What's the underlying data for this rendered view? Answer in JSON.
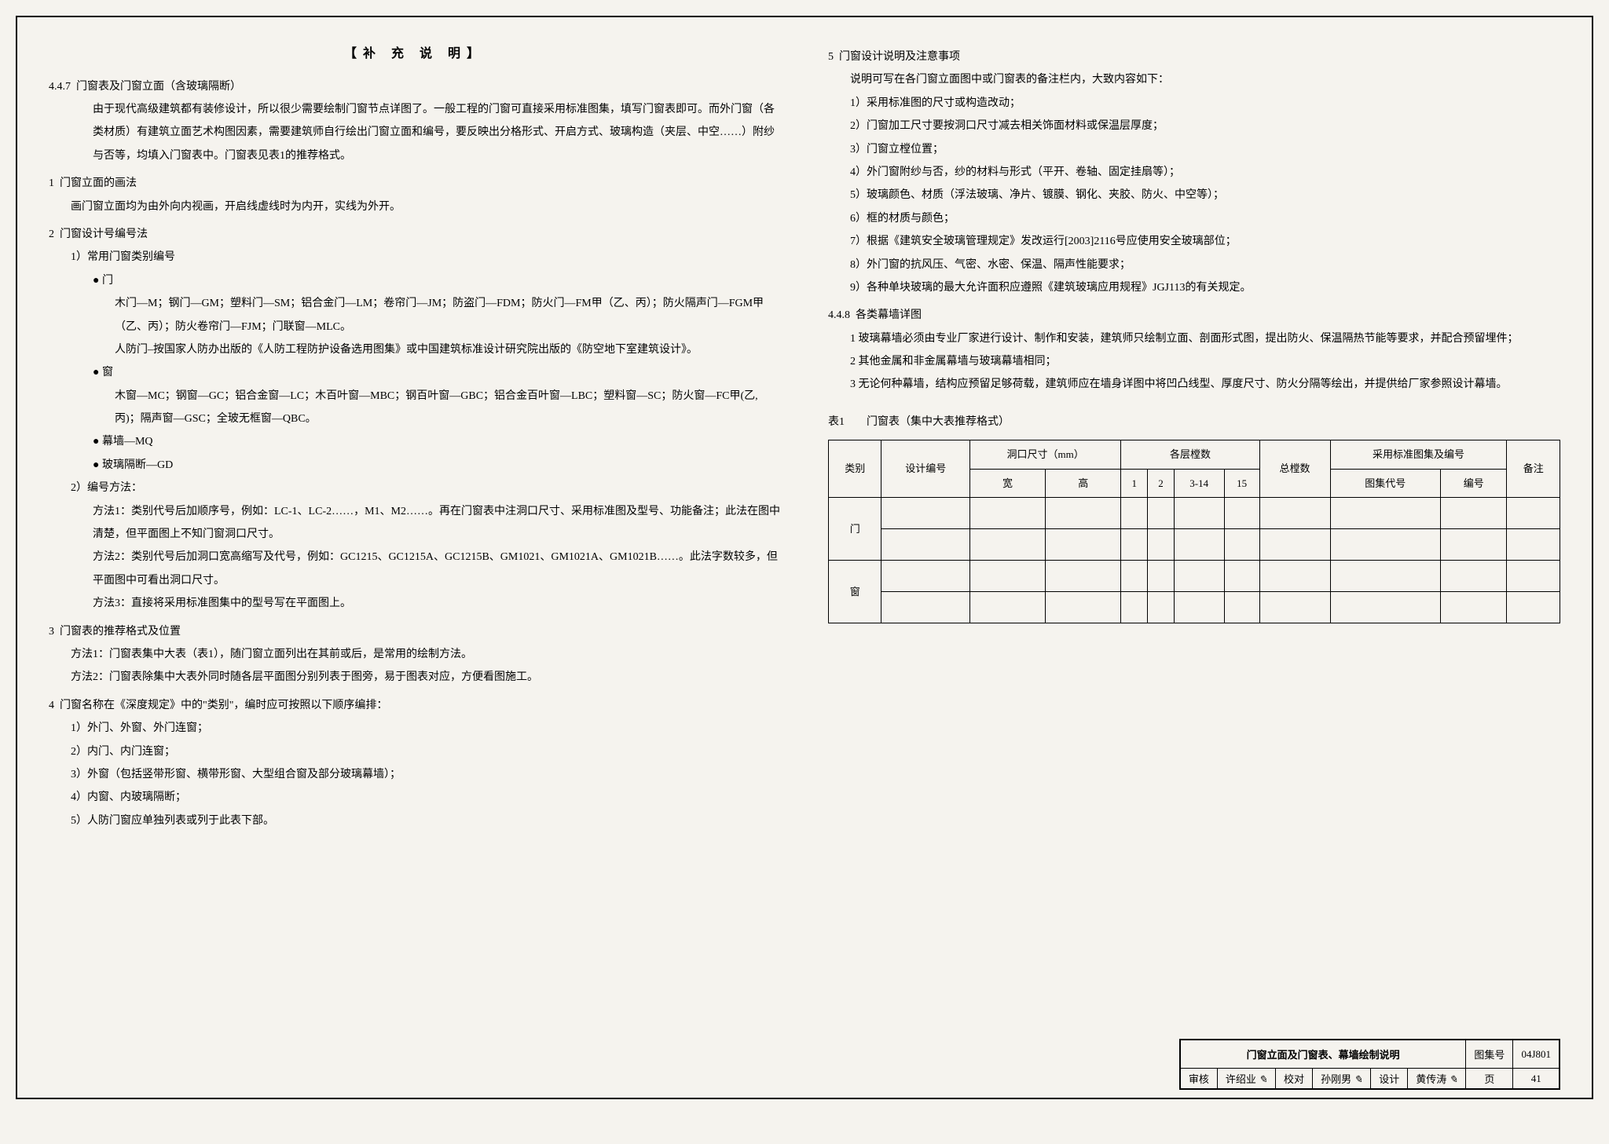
{
  "header": {
    "title": "【补 充 说 明】"
  },
  "left": {
    "s447_num": "4.4.7",
    "s447_title": "门窗表及门窗立面（含玻璃隔断）",
    "s447_p1": "由于现代高级建筑都有装修设计，所以很少需要绘制门窗节点详图了。一般工程的门窗可直接采用标准图集，填写门窗表即可。而外门窗（各类材质）有建筑立面艺术构图因素，需要建筑师自行绘出门窗立面和编号，要反映出分格形式、开启方式、玻璃构造（夹层、中空……）附纱与否等，均填入门窗表中。门窗表见表1的推荐格式。",
    "s1_num": "1",
    "s1_title": "门窗立面的画法",
    "s1_p1": "画门窗立面均为由外向内视画，开启线虚线时为内开，实线为外开。",
    "s2_num": "2",
    "s2_title": "门窗设计号编号法",
    "s2_1": "1）常用门窗类别编号",
    "door_label": "● 门",
    "door_p1": "木门—M；钢门—GM；塑料门—SM；铝合金门—LM；卷帘门—JM；防盗门—FDM；防火门—FM甲（乙、丙）；防火隔声门—FGM甲（乙、丙）；防火卷帘门—FJM；门联窗—MLC。",
    "door_p2": "人防门–按国家人防办出版的《人防工程防护设备选用图集》或中国建筑标准设计研究院出版的《防空地下室建筑设计》。",
    "win_label": "● 窗",
    "win_p1": "木窗—MC；钢窗—GC；铝合金窗—LC；木百叶窗—MBC；钢百叶窗—GBC；铝合金百叶窗—LBC；塑料窗—SC；防火窗—FC甲(乙,丙)；隔声窗—GSC；全玻无框窗—QBC。",
    "mq_label": "● 幕墙—MQ",
    "gd_label": "● 玻璃隔断—GD",
    "s2_2": "2）编号方法：",
    "m1": "方法1：类别代号后加顺序号，例如：LC-1、LC-2……，M1、M2……。再在门窗表中注洞口尺寸、采用标准图及型号、功能备注；此法在图中清楚，但平面图上不知门窗洞口尺寸。",
    "m2": "方法2：类别代号后加洞口宽高缩写及代号，例如：GC1215、GC1215A、GC1215B、GM1021、GM1021A、GM1021B……。此法字数较多，但平面图中可看出洞口尺寸。",
    "m3": "方法3：直接将采用标准图集中的型号写在平面图上。",
    "s3_num": "3",
    "s3_title": "门窗表的推荐格式及位置",
    "s3_m1": "方法1：门窗表集中大表（表1），随门窗立面列出在其前或后，是常用的绘制方法。",
    "s3_m2": "方法2：门窗表除集中大表外同时随各层平面图分别列表于图旁，易于图表对应，方便看图施工。",
    "s4_num": "4",
    "s4_title": "门窗名称在《深度规定》中的\"类别\"，编时应可按照以下顺序编排：",
    "s4_1": "1）外门、外窗、外门连窗；",
    "s4_2": "2）内门、内门连窗；",
    "s4_3": "3）外窗（包括竖带形窗、横带形窗、大型组合窗及部分玻璃幕墙）；",
    "s4_4": "4）内窗、内玻璃隔断；",
    "s4_5": "5）人防门窗应单独列表或列于此表下部。"
  },
  "right": {
    "s5_num": "5",
    "s5_title": "门窗设计说明及注意事项",
    "s5_p0": "说明可写在各门窗立面图中或门窗表的备注栏内，大致内容如下：",
    "s5_1": "1）采用标准图的尺寸或构造改动；",
    "s5_2": "2）门窗加工尺寸要按洞口尺寸减去相关饰面材料或保温层厚度；",
    "s5_3": "3）门窗立樘位置；",
    "s5_4": "4）外门窗附纱与否，纱的材料与形式（平开、卷轴、固定挂扇等）；",
    "s5_5": "5）玻璃颜色、材质（浮法玻璃、净片、镀膜、钢化、夹胶、防火、中空等）；",
    "s5_6": "6）框的材质与颜色；",
    "s5_7": "7）根据《建筑安全玻璃管理规定》发改运行[2003]2116号应使用安全玻璃部位；",
    "s5_8": "8）外门窗的抗风压、气密、水密、保温、隔声性能要求；",
    "s5_9": "9）各种单块玻璃的最大允许面积应遵照《建筑玻璃应用规程》JGJ113的有关规定。",
    "s448_num": "4.4.8",
    "s448_title": "各类幕墙详图",
    "s448_1": "1 玻璃幕墙必须由专业厂家进行设计、制作和安装，建筑师只绘制立面、剖面形式图，提出防火、保温隔热节能等要求，并配合预留埋件；",
    "s448_2": "2 其他金属和非金属幕墙与玻璃幕墙相同；",
    "s448_3": "3 无论何种幕墙，结构应预留足够荷载，建筑师应在墙身详图中将凹凸线型、厚度尺寸、防火分隔等绘出，并提供给厂家参照设计幕墙。"
  },
  "table": {
    "caption_label": "表1",
    "caption": "门窗表（集中大表推荐格式）",
    "h_type": "类别",
    "h_design": "设计编号",
    "h_hole": "洞口尺寸（mm）",
    "h_w": "宽",
    "h_h": "高",
    "h_floors": "各层樘数",
    "h_f1": "1",
    "h_f2": "2",
    "h_f3": "3-14",
    "h_f4": "15",
    "h_total": "总樘数",
    "h_std": "采用标准图集及编号",
    "h_std1": "图集代号",
    "h_std2": "编号",
    "h_note": "备注",
    "row_door": "门",
    "row_win": "窗"
  },
  "footer": {
    "drawing_title": "门窗立面及门窗表、幕墙绘制说明",
    "set_label": "图集号",
    "set_code": "04J801",
    "review_label": "审核",
    "review_name": "许绍业",
    "check_label": "校对",
    "check_name": "孙刚男",
    "design_label": "设计",
    "design_name": "黄传涛",
    "page_label": "页",
    "page_num": "41"
  }
}
